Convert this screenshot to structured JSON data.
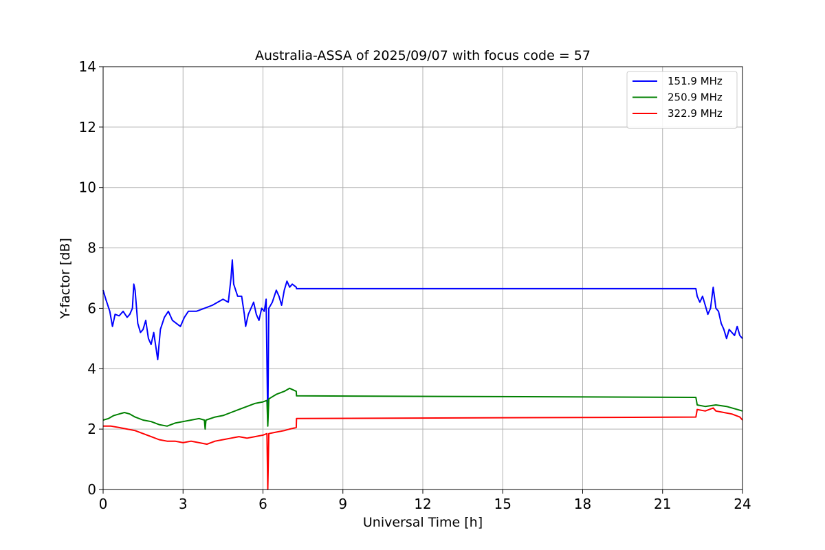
{
  "chart_data": {
    "type": "line",
    "title": "Australia-ASSA of 2025/09/07 with focus code = 57",
    "xlabel": "Universal Time [h]",
    "ylabel": "Y-factor [dB]",
    "xlim": [
      0,
      24
    ],
    "ylim": [
      0,
      14
    ],
    "xticks": [
      0,
      3,
      6,
      9,
      12,
      15,
      18,
      21,
      24
    ],
    "yticks": [
      0,
      2,
      4,
      6,
      8,
      10,
      12,
      14
    ],
    "grid": true,
    "legend_position": "upper-right",
    "series": [
      {
        "name": "151.9 MHz",
        "color": "#0000ff",
        "points": [
          [
            0.0,
            6.6
          ],
          [
            0.1,
            6.3
          ],
          [
            0.25,
            5.9
          ],
          [
            0.35,
            5.4
          ],
          [
            0.45,
            5.8
          ],
          [
            0.6,
            5.75
          ],
          [
            0.75,
            5.9
          ],
          [
            0.9,
            5.7
          ],
          [
            1.0,
            5.8
          ],
          [
            1.1,
            6.0
          ],
          [
            1.15,
            6.8
          ],
          [
            1.2,
            6.6
          ],
          [
            1.3,
            5.5
          ],
          [
            1.4,
            5.2
          ],
          [
            1.5,
            5.3
          ],
          [
            1.6,
            5.6
          ],
          [
            1.7,
            5.0
          ],
          [
            1.8,
            4.8
          ],
          [
            1.9,
            5.2
          ],
          [
            2.0,
            4.6
          ],
          [
            2.05,
            4.3
          ],
          [
            2.15,
            5.3
          ],
          [
            2.3,
            5.7
          ],
          [
            2.45,
            5.9
          ],
          [
            2.6,
            5.6
          ],
          [
            2.75,
            5.5
          ],
          [
            2.9,
            5.4
          ],
          [
            3.05,
            5.7
          ],
          [
            3.2,
            5.9
          ],
          [
            3.5,
            5.9
          ],
          [
            3.8,
            6.0
          ],
          [
            4.1,
            6.1
          ],
          [
            4.3,
            6.2
          ],
          [
            4.5,
            6.3
          ],
          [
            4.7,
            6.2
          ],
          [
            4.8,
            7.0
          ],
          [
            4.85,
            7.6
          ],
          [
            4.9,
            6.8
          ],
          [
            5.05,
            6.4
          ],
          [
            5.2,
            6.4
          ],
          [
            5.3,
            5.8
          ],
          [
            5.35,
            5.4
          ],
          [
            5.45,
            5.8
          ],
          [
            5.55,
            6.0
          ],
          [
            5.65,
            6.2
          ],
          [
            5.75,
            5.8
          ],
          [
            5.85,
            5.6
          ],
          [
            5.95,
            6.0
          ],
          [
            6.05,
            5.9
          ],
          [
            6.12,
            6.3
          ],
          [
            6.18,
            2.2
          ],
          [
            6.22,
            6.0
          ],
          [
            6.35,
            6.2
          ],
          [
            6.5,
            6.6
          ],
          [
            6.6,
            6.4
          ],
          [
            6.7,
            6.1
          ],
          [
            6.8,
            6.6
          ],
          [
            6.9,
            6.9
          ],
          [
            7.0,
            6.7
          ],
          [
            7.1,
            6.8
          ],
          [
            7.25,
            6.7
          ],
          [
            7.26,
            6.65
          ],
          [
            22.25,
            6.65
          ],
          [
            22.3,
            6.4
          ],
          [
            22.4,
            6.2
          ],
          [
            22.5,
            6.4
          ],
          [
            22.6,
            6.1
          ],
          [
            22.7,
            5.8
          ],
          [
            22.8,
            6.0
          ],
          [
            22.9,
            6.7
          ],
          [
            23.0,
            6.0
          ],
          [
            23.1,
            5.9
          ],
          [
            23.2,
            5.5
          ],
          [
            23.3,
            5.3
          ],
          [
            23.4,
            5.0
          ],
          [
            23.5,
            5.3
          ],
          [
            23.6,
            5.2
          ],
          [
            23.7,
            5.1
          ],
          [
            23.8,
            5.4
          ],
          [
            23.9,
            5.1
          ],
          [
            24.0,
            5.0
          ]
        ]
      },
      {
        "name": "250.9 MHz",
        "color": "#008000",
        "points": [
          [
            0.0,
            2.3
          ],
          [
            0.2,
            2.35
          ],
          [
            0.4,
            2.45
          ],
          [
            0.6,
            2.5
          ],
          [
            0.8,
            2.55
          ],
          [
            1.0,
            2.5
          ],
          [
            1.2,
            2.4
          ],
          [
            1.5,
            2.3
          ],
          [
            1.8,
            2.25
          ],
          [
            2.1,
            2.15
          ],
          [
            2.4,
            2.1
          ],
          [
            2.7,
            2.2
          ],
          [
            3.0,
            2.25
          ],
          [
            3.3,
            2.3
          ],
          [
            3.6,
            2.35
          ],
          [
            3.8,
            2.3
          ],
          [
            3.83,
            2.0
          ],
          [
            3.86,
            2.3
          ],
          [
            4.2,
            2.4
          ],
          [
            4.5,
            2.45
          ],
          [
            4.8,
            2.55
          ],
          [
            5.1,
            2.65
          ],
          [
            5.4,
            2.75
          ],
          [
            5.7,
            2.85
          ],
          [
            6.0,
            2.9
          ],
          [
            6.15,
            2.95
          ],
          [
            6.18,
            2.1
          ],
          [
            6.22,
            3.0
          ],
          [
            6.5,
            3.15
          ],
          [
            6.8,
            3.25
          ],
          [
            7.0,
            3.35
          ],
          [
            7.25,
            3.25
          ],
          [
            7.26,
            3.1
          ],
          [
            22.25,
            3.05
          ],
          [
            22.3,
            2.8
          ],
          [
            22.6,
            2.75
          ],
          [
            23.0,
            2.8
          ],
          [
            23.4,
            2.75
          ],
          [
            23.8,
            2.65
          ],
          [
            24.0,
            2.6
          ]
        ]
      },
      {
        "name": "322.9 MHz",
        "color": "#ff0000",
        "points": [
          [
            0.0,
            2.1
          ],
          [
            0.3,
            2.1
          ],
          [
            0.6,
            2.05
          ],
          [
            0.9,
            2.0
          ],
          [
            1.2,
            1.95
          ],
          [
            1.5,
            1.85
          ],
          [
            1.8,
            1.75
          ],
          [
            2.1,
            1.65
          ],
          [
            2.4,
            1.6
          ],
          [
            2.7,
            1.6
          ],
          [
            3.0,
            1.55
          ],
          [
            3.3,
            1.6
          ],
          [
            3.6,
            1.55
          ],
          [
            3.9,
            1.5
          ],
          [
            4.2,
            1.6
          ],
          [
            4.5,
            1.65
          ],
          [
            4.8,
            1.7
          ],
          [
            5.1,
            1.75
          ],
          [
            5.4,
            1.7
          ],
          [
            5.7,
            1.75
          ],
          [
            6.0,
            1.8
          ],
          [
            6.15,
            1.85
          ],
          [
            6.18,
            0.0
          ],
          [
            6.22,
            1.85
          ],
          [
            6.5,
            1.9
          ],
          [
            6.8,
            1.95
          ],
          [
            7.0,
            2.0
          ],
          [
            7.25,
            2.05
          ],
          [
            7.26,
            2.35
          ],
          [
            22.25,
            2.4
          ],
          [
            22.3,
            2.65
          ],
          [
            22.6,
            2.6
          ],
          [
            22.9,
            2.7
          ],
          [
            23.0,
            2.6
          ],
          [
            23.3,
            2.55
          ],
          [
            23.6,
            2.5
          ],
          [
            23.9,
            2.4
          ],
          [
            24.0,
            2.3
          ]
        ]
      }
    ]
  }
}
